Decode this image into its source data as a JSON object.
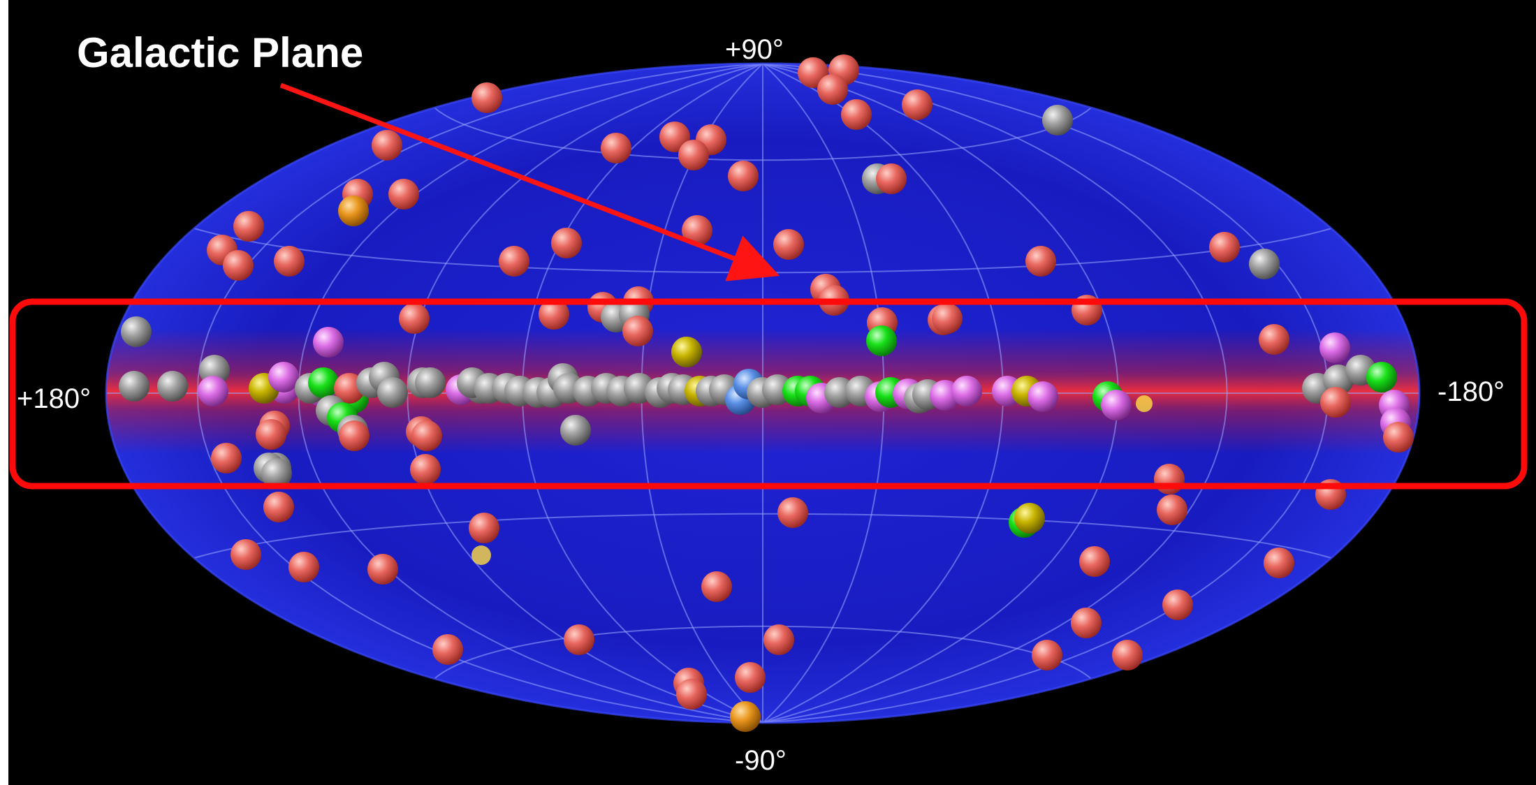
{
  "annotation": {
    "label": "Galactic Plane",
    "arrow_color": "#ff1414",
    "box_color": "#ff0a0a"
  },
  "axis_labels": {
    "north": "+90°",
    "south": "-90°",
    "left": "+180°",
    "right": "-180°"
  },
  "map": {
    "projection": "Aitoff-Hammer",
    "background_color": "#000000",
    "sky_color": "#1a1ec8",
    "plane_color": "#d01e28"
  },
  "source_colors": {
    "salmon": "#e8675f",
    "gray": "#9a9a9a",
    "magenta": "#dc6ee6",
    "green": "#18e018",
    "yellow": "#c8b400",
    "blue": "#5a8fe6",
    "orange": "#e8961e"
  }
}
